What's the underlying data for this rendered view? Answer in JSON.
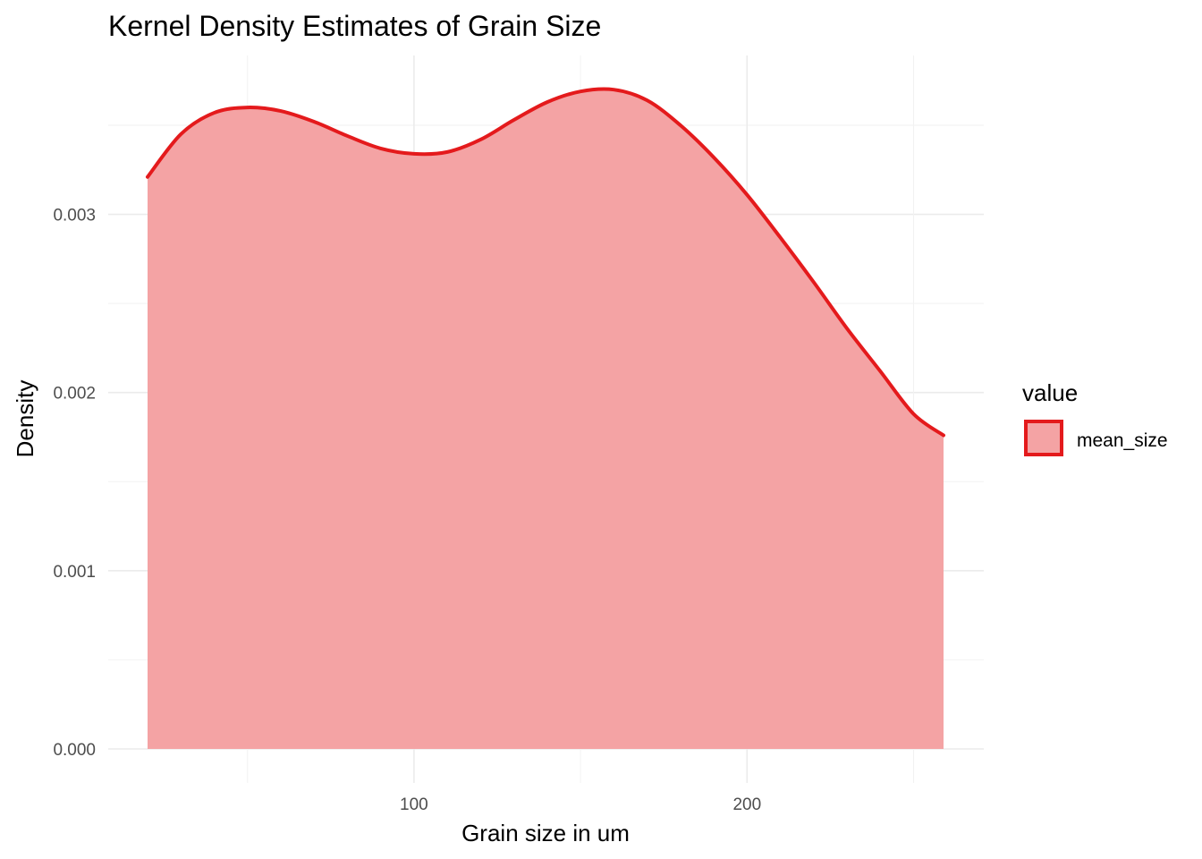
{
  "chart_data": {
    "type": "area",
    "title": "Kernel Density Estimates of Grain Size",
    "xlabel": "Grain size in um",
    "ylabel": "Density",
    "xlim": [
      8,
      259
    ],
    "ylim": [
      0,
      0.0035
    ],
    "x_ticks": [
      100,
      200
    ],
    "x_tick_labels": [
      "100",
      "200"
    ],
    "y_ticks": [
      0,
      0.001,
      0.002,
      0.003
    ],
    "y_tick_labels": [
      "0.000",
      "0.001",
      "0.002",
      "0.003"
    ],
    "grid": true,
    "legend": {
      "title": "value",
      "position": "right",
      "entries": [
        "mean_size"
      ]
    },
    "colors": {
      "line": "#e41a1c",
      "fill": "#f4a3a4",
      "grid": "#ebebeb"
    },
    "series": [
      {
        "name": "mean_size",
        "x": [
          20,
          30,
          40,
          50,
          60,
          70,
          80,
          90,
          100,
          110,
          120,
          130,
          140,
          150,
          160,
          170,
          180,
          190,
          200,
          210,
          220,
          230,
          240,
          250,
          259
        ],
        "y": [
          0.00321,
          0.00345,
          0.00357,
          0.0036,
          0.00358,
          0.00352,
          0.00344,
          0.00337,
          0.00334,
          0.00335,
          0.00342,
          0.00353,
          0.00363,
          0.00369,
          0.0037,
          0.00364,
          0.0035,
          0.00332,
          0.00311,
          0.00287,
          0.00262,
          0.00236,
          0.00212,
          0.00188,
          0.00176
        ]
      }
    ]
  }
}
